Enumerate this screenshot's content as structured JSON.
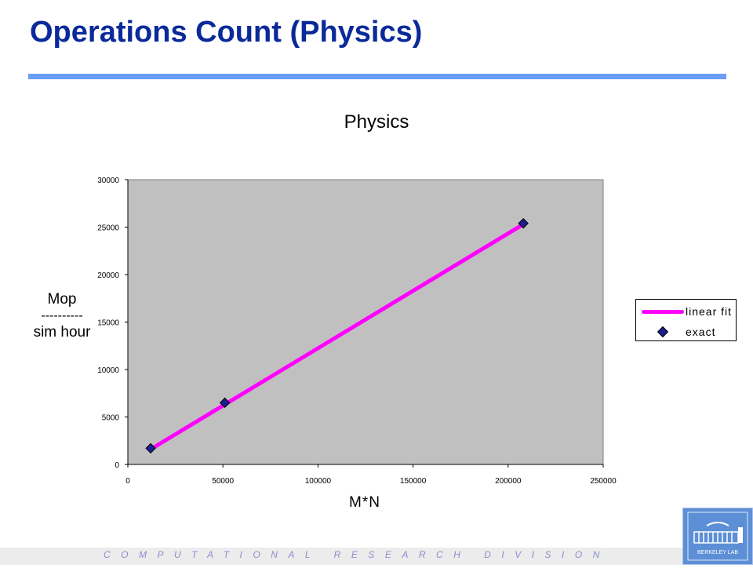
{
  "slide": {
    "title": "Operations Count (Physics)",
    "footer": "COMPUTATIONAL RESEARCH DIVISION",
    "logo_text": "BERKELEY LAB",
    "accent_color": "#0a2a9a",
    "rule_color": "#6a9ef6"
  },
  "chart_data": {
    "type": "scatter",
    "title": "Physics",
    "xlabel": "M*N",
    "ylabel_top": "Mop",
    "ylabel_dashes": "----------",
    "ylabel_bottom": "sim hour",
    "xlim": [
      0,
      250000
    ],
    "ylim": [
      0,
      30000
    ],
    "x_ticks": [
      0,
      50000,
      100000,
      150000,
      200000,
      250000
    ],
    "y_ticks": [
      0,
      5000,
      10000,
      15000,
      20000,
      25000,
      30000
    ],
    "plot_background": "#c0c0c0",
    "grid": false,
    "legend_position": "right",
    "series": [
      {
        "name": "linear fit",
        "kind": "line",
        "color": "#ff00ff",
        "x": [
          12000,
          208000
        ],
        "y": [
          1600,
          25300
        ]
      },
      {
        "name": "exact",
        "kind": "marker",
        "color": "#1a1f8f",
        "x": [
          12000,
          51000,
          208000
        ],
        "y": [
          1700,
          6500,
          25400
        ]
      }
    ]
  }
}
